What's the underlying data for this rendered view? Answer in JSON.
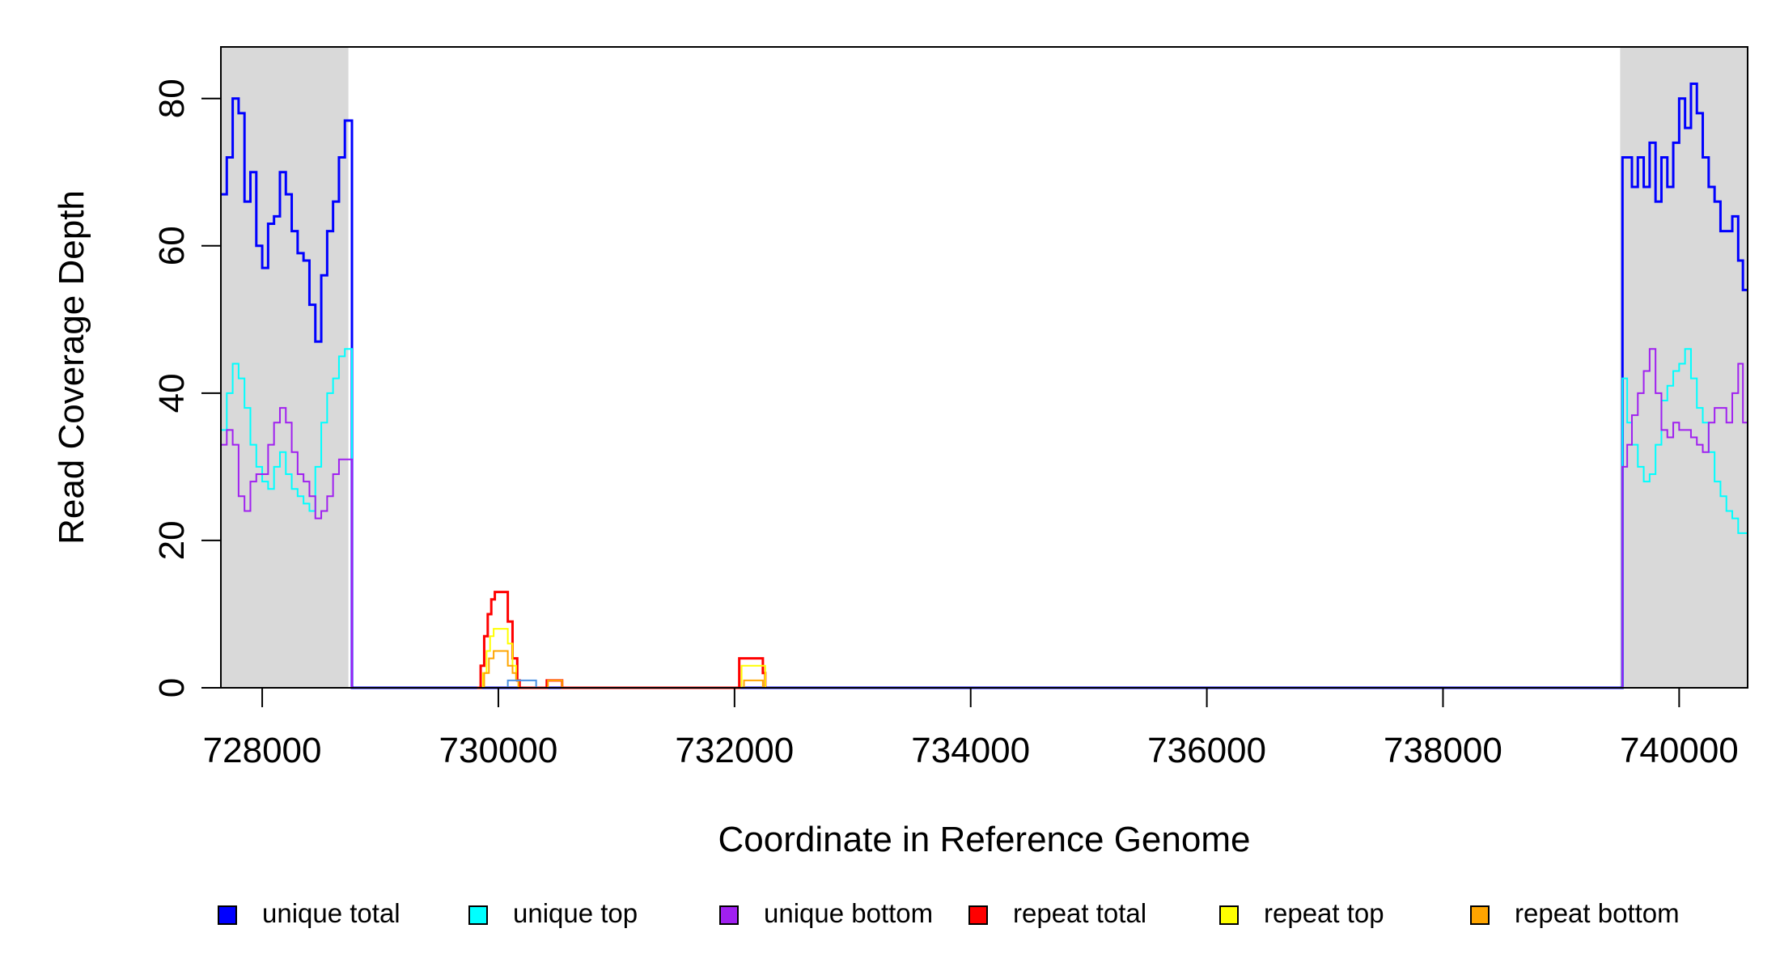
{
  "chart_data": {
    "type": "line",
    "xlabel": "Coordinate in Reference Genome",
    "ylabel": "Read Coverage Depth",
    "xlim": [
      727650,
      740580
    ],
    "ylim": [
      0,
      87
    ],
    "x_ticks": [
      728000,
      730000,
      732000,
      734000,
      736000,
      738000,
      740000
    ],
    "y_ticks": [
      0,
      20,
      40,
      60,
      80
    ],
    "x_tick_labels": [
      "728000",
      "730000",
      "732000",
      "734000",
      "736000",
      "738000",
      "740000"
    ],
    "y_tick_labels": [
      "0",
      "20",
      "40",
      "60",
      "80"
    ],
    "shaded_regions": [
      [
        727650,
        728730
      ],
      [
        739500,
        740580
      ]
    ],
    "shade_color": "#d9d9d9",
    "legend_position": "bottom",
    "series": [
      {
        "name": "unique total",
        "color": "#0000ff",
        "x": [
          727650,
          727700,
          727750,
          727800,
          727850,
          727900,
          727950,
          728000,
          728050,
          728100,
          728150,
          728200,
          728250,
          728300,
          728350,
          728400,
          728450,
          728500,
          728550,
          728600,
          728650,
          728700,
          728740,
          728760,
          739490,
          739520,
          739560,
          739600,
          739650,
          739700,
          739750,
          739800,
          739850,
          739900,
          739950,
          740000,
          740050,
          740100,
          740150,
          740200,
          740250,
          740300,
          740350,
          740400,
          740450,
          740500,
          740540,
          740580
        ],
        "values": [
          67,
          72,
          80,
          78,
          66,
          70,
          60,
          57,
          63,
          64,
          70,
          67,
          62,
          59,
          58,
          52,
          47,
          56,
          62,
          66,
          72,
          77,
          77,
          0,
          0,
          72,
          72,
          68,
          72,
          68,
          74,
          66,
          72,
          68,
          74,
          80,
          76,
          82,
          78,
          72,
          68,
          66,
          62,
          62,
          64,
          58,
          54,
          54
        ]
      },
      {
        "name": "unique top",
        "color": "#00ffff",
        "x": [
          727650,
          727700,
          727750,
          727800,
          727850,
          727900,
          727950,
          728000,
          728050,
          728100,
          728150,
          728200,
          728250,
          728300,
          728350,
          728400,
          728450,
          728500,
          728550,
          728600,
          728650,
          728700,
          728740,
          728760,
          739490,
          739520,
          739560,
          739600,
          739650,
          739700,
          739750,
          739800,
          739850,
          739900,
          739950,
          740000,
          740050,
          740100,
          740150,
          740200,
          740250,
          740300,
          740350,
          740400,
          740450,
          740500,
          740540,
          740580
        ],
        "values": [
          35,
          40,
          44,
          42,
          38,
          33,
          30,
          28,
          27,
          30,
          32,
          29,
          27,
          26,
          25,
          24,
          30,
          36,
          40,
          42,
          45,
          46,
          46,
          0,
          0,
          42,
          36,
          33,
          30,
          28,
          29,
          33,
          39,
          41,
          43,
          44,
          46,
          42,
          38,
          36,
          32,
          28,
          26,
          24,
          23,
          21,
          21,
          21
        ]
      },
      {
        "name": "unique bottom",
        "color": "#a020f0",
        "x": [
          727650,
          727700,
          727750,
          727800,
          727850,
          727900,
          727950,
          728000,
          728050,
          728100,
          728150,
          728200,
          728250,
          728300,
          728350,
          728400,
          728450,
          728500,
          728550,
          728600,
          728650,
          728700,
          728740,
          728760,
          739490,
          739520,
          739560,
          739600,
          739650,
          739700,
          739750,
          739800,
          739850,
          739900,
          739950,
          740000,
          740050,
          740100,
          740150,
          740200,
          740250,
          740300,
          740350,
          740400,
          740450,
          740500,
          740540,
          740580
        ],
        "values": [
          33,
          35,
          33,
          26,
          24,
          28,
          29,
          29,
          33,
          36,
          38,
          36,
          32,
          29,
          28,
          26,
          23,
          24,
          26,
          29,
          31,
          31,
          31,
          0,
          0,
          30,
          33,
          37,
          40,
          43,
          46,
          40,
          35,
          34,
          36,
          35,
          35,
          34,
          33,
          32,
          36,
          38,
          38,
          36,
          40,
          44,
          36,
          36
        ]
      },
      {
        "name": "repeat total",
        "color": "#ff0000",
        "x": [
          729820,
          729850,
          729880,
          729910,
          729940,
          729970,
          730000,
          730040,
          730080,
          730120,
          730160,
          730180,
          730390,
          730410,
          730520,
          730540,
          732020,
          732040,
          732080,
          732220,
          732240,
          732260
        ],
        "values": [
          0,
          3,
          7,
          10,
          12,
          13,
          13,
          13,
          9,
          4,
          1,
          0,
          0,
          1,
          1,
          0,
          0,
          4,
          4,
          4,
          2,
          0
        ]
      },
      {
        "name": "repeat top",
        "color": "#ffff00",
        "x": [
          729840,
          729870,
          729900,
          729930,
          729960,
          730000,
          730040,
          730080,
          730120,
          730150,
          730170,
          732040,
          732060,
          732240,
          732260
        ],
        "values": [
          0,
          2,
          5,
          7,
          8,
          8,
          8,
          6,
          3,
          1,
          0,
          0,
          3,
          3,
          0
        ]
      },
      {
        "name": "repeat bottom",
        "color": "#ffa500",
        "x": [
          729850,
          729880,
          729920,
          729960,
          730000,
          730040,
          730080,
          730120,
          730150,
          730170,
          730400,
          730420,
          730520,
          730540,
          732060,
          732080,
          732220,
          732240
        ],
        "values": [
          0,
          2,
          4,
          5,
          5,
          5,
          3,
          2,
          1,
          0,
          0,
          1,
          1,
          0,
          0,
          1,
          1,
          0
        ]
      },
      {
        "name": "",
        "color": "#4a90e2",
        "x": [
          730060,
          730080,
          730300,
          730320
        ],
        "values": [
          0,
          1,
          1,
          0
        ]
      }
    ],
    "legend": [
      {
        "label": "unique total",
        "color": "#0000ff"
      },
      {
        "label": "unique top",
        "color": "#00ffff"
      },
      {
        "label": "unique bottom",
        "color": "#a020f0"
      },
      {
        "label": "repeat total",
        "color": "#ff0000"
      },
      {
        "label": "repeat top",
        "color": "#ffff00"
      },
      {
        "label": "repeat bottom",
        "color": "#ffa500"
      }
    ]
  }
}
